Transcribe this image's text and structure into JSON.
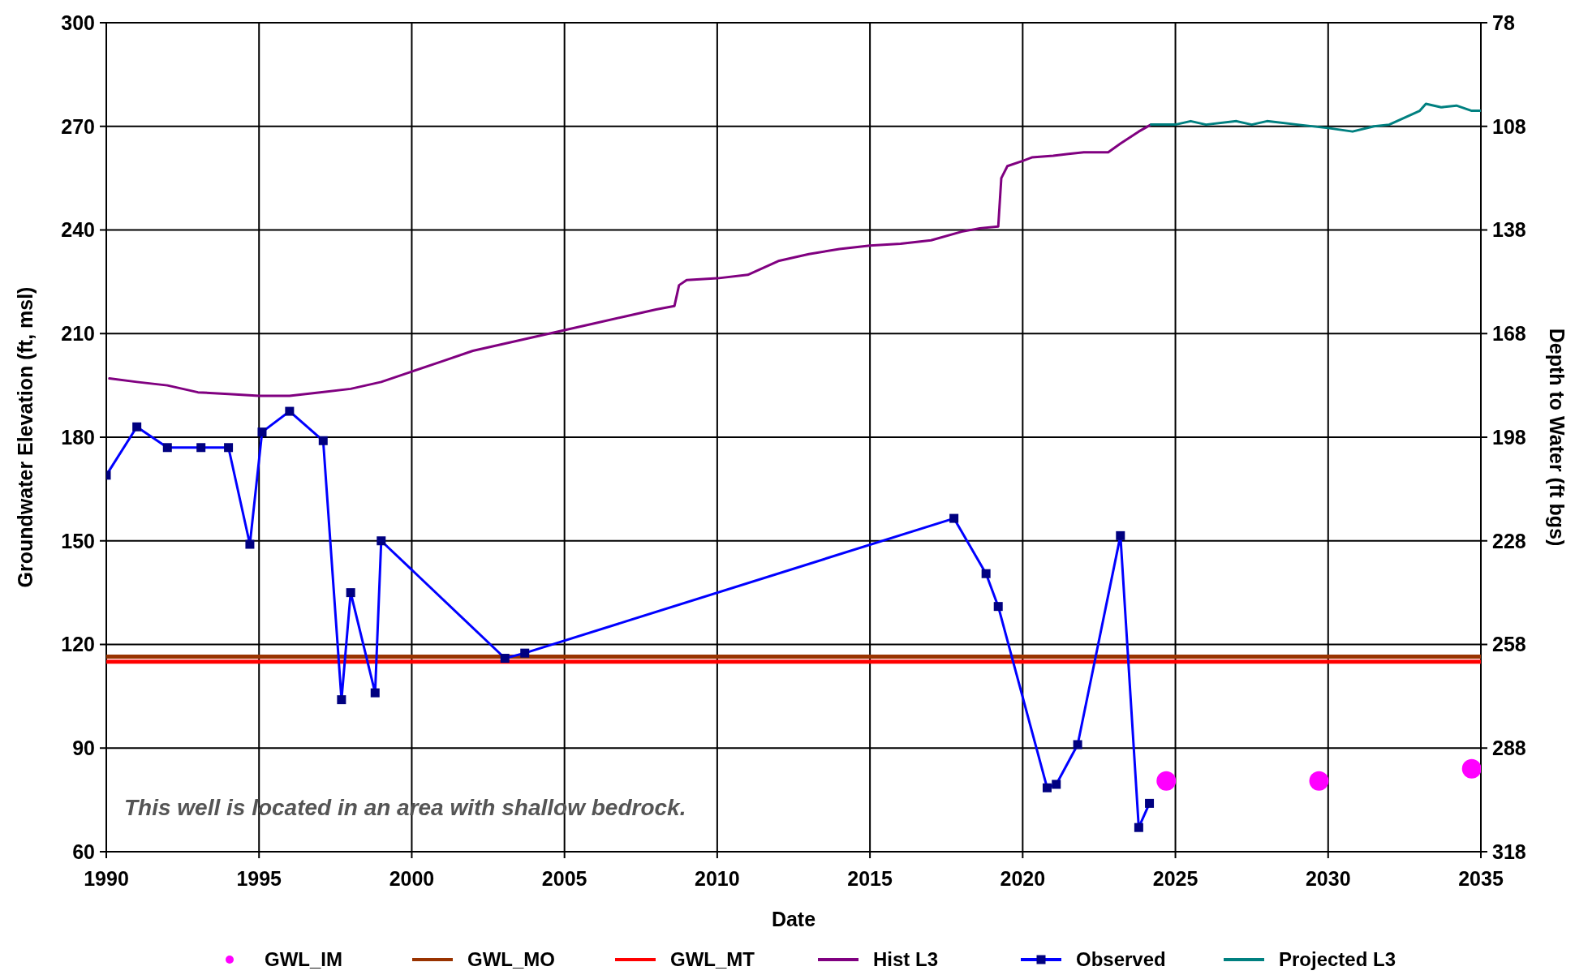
{
  "chart_data": {
    "type": "line",
    "xlabel": "Date",
    "ylabel": "Groundwater Elevation (ft, msl)",
    "y2label": "Depth to Water (ft bgs)",
    "xlim": [
      1990,
      2035
    ],
    "xticks": [
      1990,
      1995,
      2000,
      2005,
      2010,
      2015,
      2020,
      2025,
      2030,
      2035
    ],
    "ylim": [
      60,
      300
    ],
    "yticks": [
      60,
      90,
      120,
      150,
      180,
      210,
      240,
      270,
      300
    ],
    "y2lim": [
      318,
      78
    ],
    "y2ticks": [
      318,
      288,
      258,
      228,
      198,
      168,
      138,
      108,
      78
    ],
    "grid": true,
    "legend": "bottom",
    "annotations": [
      "This well is located in an area with shallow bedrock."
    ],
    "series": [
      {
        "name": "GWL_IM",
        "type": "scatter",
        "marker": "circle",
        "color": "#ff00ff",
        "x": [
          2024.7,
          2029.7,
          2034.7
        ],
        "values": [
          80.5,
          80.5,
          84
        ]
      },
      {
        "name": "GWL_MO",
        "marker": "none",
        "color": "#993300",
        "x": [
          1990,
          2035
        ],
        "values": [
          116.5,
          116.5
        ]
      },
      {
        "name": "GWL_MT",
        "marker": "none",
        "color": "#ff0000",
        "x": [
          1990,
          2035
        ],
        "values": [
          115,
          115
        ]
      },
      {
        "name": "Hist L3",
        "marker": "none",
        "color": "#800080",
        "x": [
          1990.1,
          1991,
          1992,
          1993,
          1994,
          1995,
          1996,
          1997,
          1998,
          1999,
          2000,
          2001,
          2002,
          2003,
          2004,
          2005,
          2006,
          2007,
          2008,
          2008.6,
          2008.75,
          2009,
          2010,
          2011,
          2011.5,
          2012,
          2013,
          2014,
          2015,
          2016,
          2017,
          2018,
          2018.6,
          2019.2,
          2019.3,
          2019.5,
          2020,
          2020.3,
          2021,
          2021.5,
          2022,
          2022.8,
          2023.2,
          2023.8,
          2024.2
        ],
        "values": [
          197,
          196,
          195,
          193,
          192.5,
          192,
          192,
          193,
          194,
          196,
          199,
          202,
          205,
          207,
          209,
          211,
          213,
          215,
          217,
          218,
          224,
          225.5,
          226,
          227,
          229,
          231,
          233,
          234.5,
          235.5,
          236,
          237,
          239.5,
          240.5,
          241,
          255,
          258.5,
          260,
          261,
          261.5,
          262,
          262.5,
          262.5,
          265,
          268.5,
          270.5
        ]
      },
      {
        "name": "Observed",
        "marker": "square",
        "color": "#0000ff",
        "x": [
          1990,
          1991,
          1992,
          1993.1,
          1994,
          1994.7,
          1995.1,
          1996,
          1997.1,
          1997.7,
          1998,
          1998.8,
          1999,
          2003.05,
          2003.7,
          2017.75,
          2018.8,
          2019.2,
          2020.8,
          2021.1,
          2021.8,
          2023.2,
          2023.8,
          2024.15
        ],
        "values": [
          169,
          183,
          177,
          177,
          177,
          149,
          181.5,
          187.5,
          179,
          104,
          135,
          106,
          150,
          116,
          117.5,
          156.5,
          140.5,
          131,
          78.5,
          79.5,
          91,
          151.5,
          67,
          74
        ]
      },
      {
        "name": "Projected L3",
        "marker": "none",
        "color": "#008080",
        "x": [
          2024.2,
          2025,
          2025.5,
          2026,
          2027,
          2027.5,
          2028,
          2029,
          2030,
          2030.8,
          2031.5,
          2032,
          2032.5,
          2033,
          2033.2,
          2033.7,
          2034.2,
          2034.7,
          2035
        ],
        "values": [
          270.5,
          270.5,
          271.5,
          270.5,
          271.5,
          270.5,
          271.5,
          270.5,
          269.5,
          268.5,
          270,
          270.5,
          272.5,
          274.5,
          276.5,
          275.5,
          276,
          274.5,
          274.5
        ]
      }
    ]
  }
}
